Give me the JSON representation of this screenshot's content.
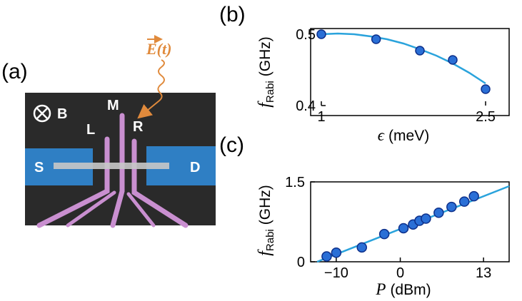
{
  "figure": {
    "panel_a": {
      "label": "(a)",
      "field_label": "E(t)",
      "magnetic_field_label": "B",
      "gate_labels": {
        "left": "L",
        "middle": "M",
        "right": "R"
      },
      "contact_labels": {
        "source": "S",
        "drain": "D"
      },
      "colors": {
        "background": "#2a2a2a",
        "contacts": "#2f7fc4",
        "gates": "#c98fd0",
        "channel": "#c8c8c8",
        "field_arrow": "#e08a3c"
      }
    },
    "panel_b": {
      "label": "(b)"
    },
    "panel_c": {
      "label": "(c)"
    }
  },
  "chart_data": [
    {
      "type": "scatter",
      "panel": "(b)",
      "xlabel_symbol": "ϵ",
      "xlabel_unit": "(meV)",
      "ylabel_symbol": "f",
      "ylabel_sub": "Rabi",
      "ylabel_unit": "(GHz)",
      "xlim": [
        1.0,
        2.5
      ],
      "ylim": [
        0.4,
        0.5
      ],
      "xticks": [
        1,
        2.5
      ],
      "xtick_labels": [
        "1",
        "2.5"
      ],
      "yticks": [
        0.4,
        0.5
      ],
      "ytick_labels": [
        "0.4",
        "0.5"
      ],
      "points": [
        {
          "x": 1.0,
          "y": 0.5,
          "err": 0.004
        },
        {
          "x": 1.5,
          "y": 0.493,
          "err": 0.003
        },
        {
          "x": 1.9,
          "y": 0.477,
          "err": 0.003
        },
        {
          "x": 2.2,
          "y": 0.464,
          "err": 0.004
        },
        {
          "x": 2.5,
          "y": 0.423,
          "err": 0.004
        }
      ],
      "fit": [
        {
          "x": 1.0,
          "y": 0.5
        },
        {
          "x": 1.15,
          "y": 0.501
        },
        {
          "x": 1.3,
          "y": 0.5
        },
        {
          "x": 1.45,
          "y": 0.497
        },
        {
          "x": 1.6,
          "y": 0.493
        },
        {
          "x": 1.75,
          "y": 0.487
        },
        {
          "x": 1.9,
          "y": 0.479
        },
        {
          "x": 2.05,
          "y": 0.47
        },
        {
          "x": 2.2,
          "y": 0.459
        },
        {
          "x": 2.35,
          "y": 0.446
        },
        {
          "x": 2.5,
          "y": 0.431
        }
      ],
      "colors": {
        "marker_face": "#2a6fd6",
        "marker_edge": "#0d2f8a",
        "fit": "#2aa3dc"
      }
    },
    {
      "type": "scatter",
      "panel": "(c)",
      "xlabel_symbol": "P",
      "xlabel_unit": "(dBm)",
      "ylabel_symbol": "f",
      "ylabel_sub": "Rabi",
      "ylabel_unit": "(GHz)",
      "xlim": [
        -14,
        17
      ],
      "ylim": [
        0,
        1.5
      ],
      "xticks": [
        -10,
        0,
        13
      ],
      "xtick_labels": [
        "−10",
        "0",
        "13"
      ],
      "yticks": [
        0,
        1.5
      ],
      "ytick_labels": [
        "0",
        "1.5"
      ],
      "points": [
        {
          "x": -11.5,
          "y": 0.1
        },
        {
          "x": -10,
          "y": 0.17
        },
        {
          "x": -6,
          "y": 0.27
        },
        {
          "x": -2.5,
          "y": 0.52
        },
        {
          "x": 0.5,
          "y": 0.63
        },
        {
          "x": 2,
          "y": 0.7
        },
        {
          "x": 3,
          "y": 0.77
        },
        {
          "x": 4,
          "y": 0.81
        },
        {
          "x": 6,
          "y": 0.92
        },
        {
          "x": 8,
          "y": 1.03
        },
        {
          "x": 10,
          "y": 1.13
        },
        {
          "x": 11.5,
          "y": 1.23
        }
      ],
      "fit": [
        {
          "x": -13,
          "y": 0.0
        },
        {
          "x": 17,
          "y": 1.42
        }
      ],
      "colors": {
        "marker_face": "#2a6fd6",
        "marker_edge": "#0d2f8a",
        "fit": "#2aa3dc"
      }
    }
  ]
}
